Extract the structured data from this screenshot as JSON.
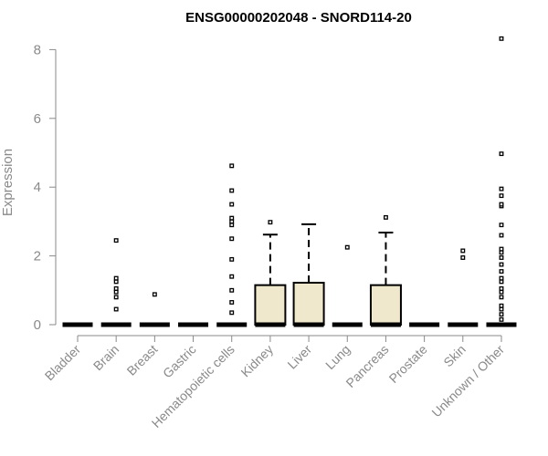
{
  "chart_data": {
    "type": "boxplot",
    "title": "ENSG00000202048 - SNORD114-20",
    "ylabel": "Expression",
    "ylim": [
      0,
      8.3
    ],
    "yticks": [
      "0",
      "2",
      "4",
      "6",
      "8"
    ],
    "ytick_values": [
      0,
      2,
      4,
      6,
      8
    ],
    "grid": false,
    "colors": {
      "box_fill": "#f0e8cc",
      "box_stroke": "#000000",
      "axis": "#8a8a8a"
    },
    "categories": [
      "Bladder",
      "Brain",
      "Breast",
      "Gastric",
      "Hematopoietic cells",
      "Kidney",
      "Liver",
      "Lung",
      "Pancreas",
      "Prostate",
      "Skin",
      "Unknown / Other"
    ],
    "boxes": [
      {
        "category": "Bladder",
        "q1": 0,
        "median": 0,
        "q3": 0,
        "whisker_low": 0,
        "whisker_high": 0,
        "outliers": []
      },
      {
        "category": "Brain",
        "q1": 0,
        "median": 0,
        "q3": 0,
        "whisker_low": 0,
        "whisker_high": 0,
        "outliers": [
          0.45,
          0.8,
          0.95,
          1.05,
          1.25,
          1.35,
          2.45
        ]
      },
      {
        "category": "Breast",
        "q1": 0,
        "median": 0,
        "q3": 0,
        "whisker_low": 0,
        "whisker_high": 0,
        "outliers": [
          0.88
        ]
      },
      {
        "category": "Gastric",
        "q1": 0,
        "median": 0,
        "q3": 0,
        "whisker_low": 0,
        "whisker_high": 0,
        "outliers": []
      },
      {
        "category": "Hematopoietic cells",
        "q1": 0,
        "median": 0,
        "q3": 0,
        "whisker_low": 0,
        "whisker_high": 0,
        "outliers": [
          0.35,
          0.65,
          1.0,
          1.4,
          1.9,
          2.5,
          2.9,
          3.0,
          3.1,
          3.5,
          3.9,
          4.62
        ]
      },
      {
        "category": "Kidney",
        "q1": 0,
        "median": 0,
        "q3": 1.15,
        "whisker_low": 0,
        "whisker_high": 2.62,
        "outliers": [
          2.98
        ]
      },
      {
        "category": "Liver",
        "q1": 0,
        "median": 0,
        "q3": 1.22,
        "whisker_low": 0,
        "whisker_high": 2.92,
        "outliers": []
      },
      {
        "category": "Lung",
        "q1": 0,
        "median": 0,
        "q3": 0,
        "whisker_low": 0,
        "whisker_high": 0,
        "outliers": [
          2.25
        ]
      },
      {
        "category": "Pancreas",
        "q1": 0,
        "median": 0,
        "q3": 1.15,
        "whisker_low": 0,
        "whisker_high": 2.68,
        "outliers": [
          3.12
        ]
      },
      {
        "category": "Prostate",
        "q1": 0,
        "median": 0,
        "q3": 0,
        "whisker_low": 0,
        "whisker_high": 0,
        "outliers": []
      },
      {
        "category": "Skin",
        "q1": 0,
        "median": 0,
        "q3": 0,
        "whisker_low": 0,
        "whisker_high": 0,
        "outliers": [
          1.95,
          2.15
        ]
      },
      {
        "category": "Unknown / Other",
        "q1": 0,
        "median": 0,
        "q3": 0,
        "whisker_low": 0,
        "whisker_high": 0,
        "outliers": [
          0.15,
          0.3,
          0.45,
          0.55,
          0.8,
          0.95,
          1.05,
          1.25,
          1.35,
          1.55,
          1.75,
          1.95,
          2.1,
          2.2,
          2.6,
          2.9,
          3.45,
          3.5,
          3.75,
          3.95,
          4.97,
          8.32
        ]
      }
    ]
  }
}
